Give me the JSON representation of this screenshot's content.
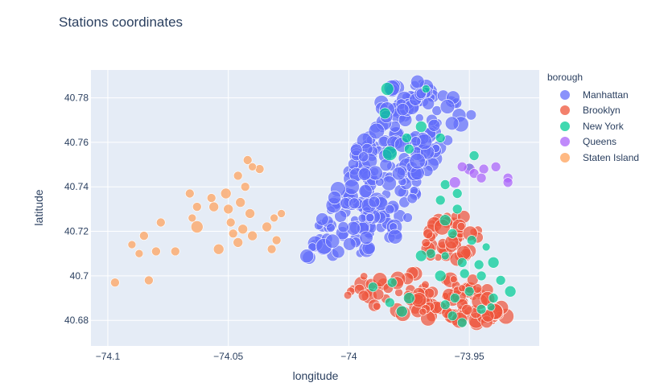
{
  "chart_data": {
    "type": "scatter",
    "title": "Stations coordinates",
    "xlabel": "longitude",
    "ylabel": "latitude",
    "xlim": [
      -74.107,
      -73.921
    ],
    "ylim": [
      40.6685,
      40.7925
    ],
    "x_ticks": [
      {
        "value": -74.1,
        "label": "−74.1"
      },
      {
        "value": -74.05,
        "label": "−74.05"
      },
      {
        "value": -74.0,
        "label": "−74"
      },
      {
        "value": -73.95,
        "label": "−73.95"
      }
    ],
    "y_ticks": [
      {
        "value": 40.68,
        "label": "40.68"
      },
      {
        "value": 40.7,
        "label": "40.7"
      },
      {
        "value": 40.72,
        "label": "40.72"
      },
      {
        "value": 40.74,
        "label": "40.74"
      },
      {
        "value": 40.76,
        "label": "40.76"
      },
      {
        "value": 40.78,
        "label": "40.78"
      }
    ],
    "grid": true,
    "legend_title": "borough",
    "legend_position": "right",
    "series": [
      {
        "name": "Manhattan",
        "color": "#636efa",
        "region": {
          "polygon": [
            [
              -74.018,
              40.708
            ],
            [
              -74.013,
              40.722
            ],
            [
              -74.006,
              40.736
            ],
            [
              -73.998,
              40.756
            ],
            [
              -73.99,
              40.768
            ],
            [
              -73.984,
              40.786
            ],
            [
              -73.972,
              40.788
            ],
            [
              -73.965,
              40.784
            ],
            [
              -73.952,
              40.778
            ],
            [
              -73.949,
              40.772
            ],
            [
              -73.958,
              40.76
            ],
            [
              -73.966,
              40.748
            ],
            [
              -73.972,
              40.738
            ],
            [
              -73.974,
              40.728
            ],
            [
              -73.978,
              40.718
            ],
            [
              -73.99,
              40.712
            ],
            [
              -74.005,
              40.706
            ]
          ],
          "count": 260,
          "size_range": [
            5,
            10
          ],
          "seed": 11
        }
      },
      {
        "name": "Brooklyn",
        "color": "#ef553b",
        "region": {
          "polygons": [
            [
              [
                -74.003,
                40.692
              ],
              [
                -73.995,
                40.702
              ],
              [
                -73.98,
                40.702
              ],
              [
                -73.96,
                40.7
              ],
              [
                -73.945,
                40.698
              ],
              [
                -73.938,
                40.688
              ],
              [
                -73.932,
                40.682
              ],
              [
                -73.94,
                40.678
              ],
              [
                -73.96,
                40.68
              ],
              [
                -73.98,
                40.682
              ],
              [
                -73.995,
                40.688
              ]
            ],
            [
              [
                -73.969,
                40.716
              ],
              [
                -73.966,
                40.724
              ],
              [
                -73.958,
                40.728
              ],
              [
                -73.95,
                40.727
              ],
              [
                -73.945,
                40.72
              ],
              [
                -73.944,
                40.713
              ],
              [
                -73.95,
                40.706
              ],
              [
                -73.958,
                40.705
              ],
              [
                -73.966,
                40.708
              ]
            ]
          ],
          "count": 150,
          "size_range": [
            4.5,
            10
          ],
          "seed": 23
        }
      },
      {
        "name": "New York",
        "color": "#00cc96",
        "points": [
          [
            -73.984,
            40.784
          ],
          [
            -73.968,
            40.784
          ],
          [
            -73.985,
            40.773
          ],
          [
            -73.97,
            40.767
          ],
          [
            -73.976,
            40.762
          ],
          [
            -73.983,
            40.755
          ],
          [
            -73.975,
            40.757
          ],
          [
            -73.962,
            40.762
          ],
          [
            -73.948,
            40.754
          ],
          [
            -73.95,
            40.749
          ],
          [
            -73.96,
            40.741
          ],
          [
            -73.955,
            40.737
          ],
          [
            -73.962,
            40.734
          ],
          [
            -73.955,
            40.73
          ],
          [
            -73.96,
            40.725
          ],
          [
            -73.957,
            40.719
          ],
          [
            -73.949,
            40.716
          ],
          [
            -73.943,
            40.713
          ],
          [
            -73.966,
            40.71
          ],
          [
            -73.97,
            40.709
          ],
          [
            -73.96,
            40.709
          ],
          [
            -73.953,
            40.706
          ],
          [
            -73.946,
            40.705
          ],
          [
            -73.952,
            40.701
          ],
          [
            -73.945,
            40.7
          ],
          [
            -73.94,
            40.706
          ],
          [
            -73.937,
            40.698
          ],
          [
            -73.933,
            40.693
          ],
          [
            -73.94,
            40.69
          ],
          [
            -73.95,
            40.693
          ],
          [
            -73.956,
            40.69
          ],
          [
            -73.96,
            40.687
          ],
          [
            -73.982,
            40.697
          ],
          [
            -73.99,
            40.695
          ],
          [
            -73.975,
            40.69
          ],
          [
            -73.983,
            40.688
          ],
          [
            -73.978,
            40.684
          ],
          [
            -73.957,
            40.682
          ],
          [
            -73.953,
            40.679
          ],
          [
            -73.945,
            40.685
          ],
          [
            -73.941,
            40.686
          ],
          [
            -73.962,
            40.7
          ]
        ],
        "sizes": [
          8,
          5,
          7,
          7,
          6,
          9,
          6,
          6,
          6,
          5,
          6,
          6,
          6,
          6,
          7,
          6,
          6,
          5,
          6,
          7,
          5,
          6,
          6,
          6,
          6,
          7,
          6,
          7,
          6,
          6,
          6,
          6,
          6,
          6,
          7,
          6,
          7,
          6,
          6,
          6,
          5,
          7
        ]
      },
      {
        "name": "Queens",
        "color": "#ab63fa",
        "points": [
          [
            -73.956,
            40.742
          ],
          [
            -73.95,
            40.748
          ],
          [
            -73.948,
            40.746
          ],
          [
            -73.944,
            40.748
          ],
          [
            -73.939,
            40.749
          ],
          [
            -73.945,
            40.744
          ],
          [
            -73.934,
            40.744
          ],
          [
            -73.934,
            40.742
          ],
          [
            -73.953,
            40.749
          ]
        ],
        "sizes": [
          7,
          7,
          6,
          6,
          6,
          6,
          6,
          6,
          6
        ]
      },
      {
        "name": "Staten Island",
        "color": "#ffa15a",
        "points": [
          [
            -74.097,
            40.697
          ],
          [
            -74.09,
            40.714
          ],
          [
            -74.087,
            40.71
          ],
          [
            -74.085,
            40.718
          ],
          [
            -74.083,
            40.698
          ],
          [
            -74.08,
            40.711
          ],
          [
            -74.078,
            40.724
          ],
          [
            -74.072,
            40.711
          ],
          [
            -74.066,
            40.737
          ],
          [
            -74.065,
            40.726
          ],
          [
            -74.063,
            40.731
          ],
          [
            -74.063,
            40.722
          ],
          [
            -74.057,
            40.735
          ],
          [
            -74.056,
            40.731
          ],
          [
            -74.054,
            40.712
          ],
          [
            -74.051,
            40.737
          ],
          [
            -74.049,
            40.724
          ],
          [
            -74.05,
            40.73
          ],
          [
            -74.048,
            40.719
          ],
          [
            -74.046,
            40.715
          ],
          [
            -74.046,
            40.745
          ],
          [
            -74.044,
            40.721
          ],
          [
            -74.043,
            40.74
          ],
          [
            -74.041,
            40.728
          ],
          [
            -74.04,
            40.718
          ],
          [
            -74.042,
            40.752
          ],
          [
            -74.037,
            40.748
          ],
          [
            -74.034,
            40.722
          ],
          [
            -74.032,
            40.712
          ],
          [
            -74.03,
            40.716
          ],
          [
            -74.031,
            40.726
          ],
          [
            -74.028,
            40.728
          ],
          [
            -74.045,
            40.733
          ],
          [
            -74.04,
            40.749
          ]
        ],
        "sizes": [
          5.5,
          5,
          5,
          5.5,
          5.5,
          5.5,
          5.5,
          5.5,
          5.5,
          5,
          5.5,
          7.5,
          5.5,
          6,
          6.5,
          6.5,
          5.5,
          6,
          5.5,
          6,
          5.5,
          6,
          5.5,
          6,
          6,
          5.5,
          5.5,
          6,
          5.5,
          5.5,
          5,
          5,
          6,
          5
        ]
      }
    ]
  }
}
